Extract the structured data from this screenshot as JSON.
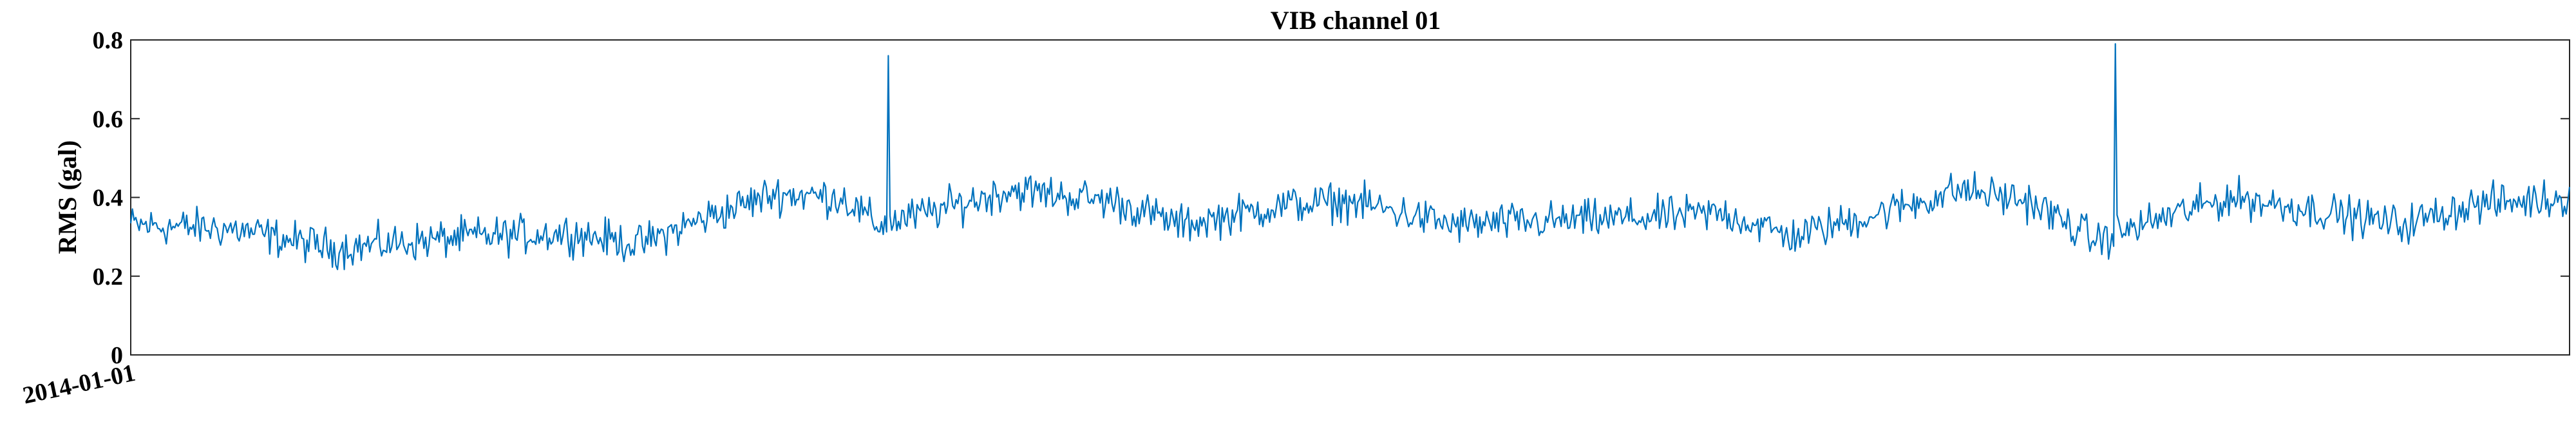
{
  "chart_data": {
    "type": "line",
    "title": "VIB channel 01",
    "xlabel": "",
    "ylabel": "RMS (gal)",
    "ylim": [
      0,
      0.8
    ],
    "yticks": [
      0,
      0.2,
      0.4,
      0.6,
      0.8
    ],
    "ytick_labels": [
      "0",
      "0.2",
      "0.4",
      "0.6",
      "0.8"
    ],
    "xtick_labels": [
      "2014-01-01"
    ],
    "grid": false,
    "legend": "none",
    "line_color": "#0072BD",
    "series": [
      {
        "points_approx": 1440,
        "baseline_segments": [
          [
            0,
            0.33
          ],
          [
            60,
            0.32
          ],
          [
            120,
            0.27
          ],
          [
            200,
            0.3
          ],
          [
            260,
            0.31
          ],
          [
            300,
            0.28
          ],
          [
            340,
            0.35
          ],
          [
            380,
            0.41
          ],
          [
            420,
            0.4
          ],
          [
            440,
            0.33
          ],
          [
            470,
            0.36
          ],
          [
            520,
            0.42
          ],
          [
            580,
            0.39
          ],
          [
            620,
            0.33
          ],
          [
            680,
            0.38
          ],
          [
            720,
            0.39
          ],
          [
            780,
            0.33
          ],
          [
            840,
            0.34
          ],
          [
            900,
            0.35
          ],
          [
            940,
            0.36
          ],
          [
            980,
            0.3
          ],
          [
            1040,
            0.37
          ],
          [
            1080,
            0.42
          ],
          [
            1120,
            0.39
          ],
          [
            1160,
            0.29
          ],
          [
            1200,
            0.35
          ],
          [
            1240,
            0.4
          ],
          [
            1300,
            0.36
          ],
          [
            1340,
            0.33
          ],
          [
            1380,
            0.38
          ],
          [
            1440,
            0.4
          ]
        ],
        "spikes": [
          [
            447,
            0.76
          ],
          [
            1171,
            0.79
          ]
        ],
        "noise_amplitude": 0.045
      }
    ]
  }
}
